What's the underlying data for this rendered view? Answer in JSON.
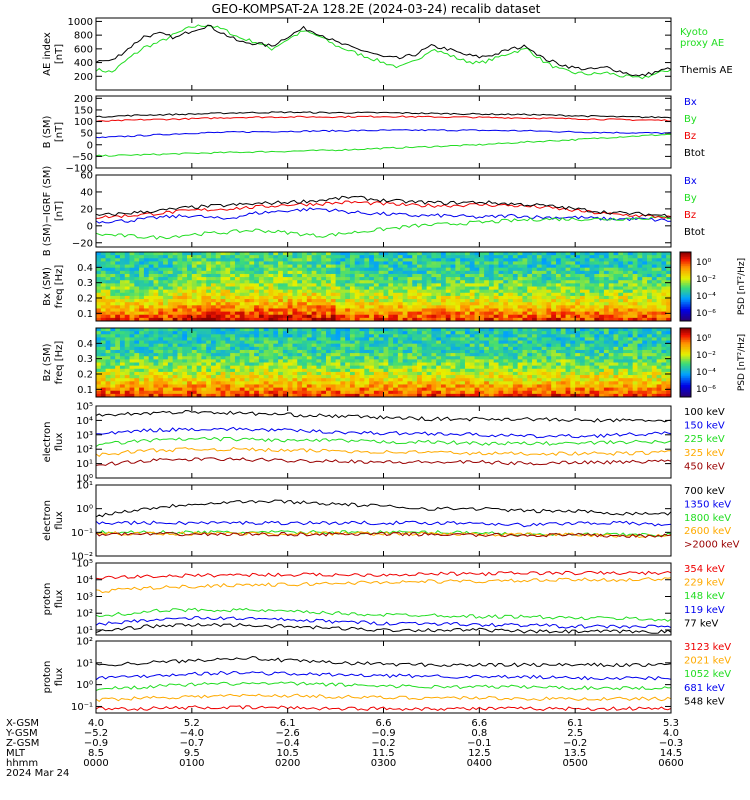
{
  "title": "GEO-KOMPSAT-2A 128.2E (2024-03-24) recalib dataset",
  "date_label": "2024 Mar 24",
  "colors": {
    "black": "#000000",
    "blue": "#0000ee",
    "green": "#22dd22",
    "red": "#ee0000",
    "orange": "#ffaa00",
    "darkred": "#990000"
  },
  "chart_data": [
    {
      "id": "ae",
      "type": "line",
      "ylabel": "AE index",
      "units": "[nT]",
      "ylim": [
        0,
        1050
      ],
      "ticks": [
        "1000",
        "800",
        "600",
        "400",
        "200"
      ],
      "tick_values": [
        1000,
        800,
        600,
        400,
        200
      ],
      "x": [
        0,
        10,
        20,
        30,
        40,
        50,
        60,
        70,
        80,
        90,
        100,
        110,
        120,
        130,
        140,
        150,
        160,
        170,
        180,
        190,
        200,
        210,
        220,
        230,
        240,
        250,
        260,
        270,
        280,
        290,
        300,
        310,
        320,
        330,
        340,
        350,
        360
      ],
      "series": [
        {
          "name": "Kyoto\nproxy AE",
          "color": "#22dd22",
          "values": [
            300,
            260,
            450,
            620,
            700,
            820,
            920,
            950,
            880,
            760,
            700,
            600,
            740,
            860,
            780,
            650,
            560,
            480,
            400,
            330,
            420,
            600,
            520,
            430,
            390,
            460,
            550,
            600,
            420,
            300,
            250,
            230,
            250,
            200,
            170,
            230,
            300
          ]
        },
        {
          "name": "Themis AE",
          "color": "#000000",
          "values": [
            420,
            430,
            600,
            780,
            820,
            760,
            870,
            940,
            820,
            700,
            680,
            640,
            780,
            900,
            820,
            700,
            620,
            560,
            480,
            460,
            520,
            640,
            600,
            520,
            480,
            520,
            600,
            640,
            460,
            380,
            320,
            300,
            330,
            260,
            200,
            260,
            320
          ]
        }
      ]
    },
    {
      "id": "bsm",
      "type": "line",
      "ylabel": "B (SM)",
      "units": "[nT]",
      "ylim": [
        -100,
        210
      ],
      "ticks": [
        "200",
        "150",
        "100",
        "50",
        "0",
        "−50",
        "−100"
      ],
      "tick_values": [
        200,
        150,
        100,
        50,
        0,
        -50,
        -100
      ],
      "x": [
        0,
        30,
        60,
        90,
        120,
        150,
        180,
        210,
        240,
        270,
        300,
        330,
        360
      ],
      "series": [
        {
          "name": "Bx",
          "color": "#0000ee",
          "values": [
            30,
            40,
            50,
            55,
            58,
            60,
            62,
            63,
            62,
            60,
            55,
            52,
            50
          ]
        },
        {
          "name": "By",
          "color": "#22dd22",
          "values": [
            -48,
            -43,
            -37,
            -32,
            -28,
            -23,
            -15,
            -8,
            0,
            12,
            22,
            35,
            45
          ]
        },
        {
          "name": "Bz",
          "color": "#ee0000",
          "values": [
            100,
            108,
            112,
            118,
            120,
            120,
            122,
            120,
            118,
            115,
            112,
            108,
            105
          ]
        },
        {
          "name": "Btot",
          "color": "#000000",
          "values": [
            120,
            128,
            132,
            138,
            140,
            138,
            138,
            135,
            132,
            130,
            125,
            120,
            118
          ]
        }
      ]
    },
    {
      "id": "bsmigrf",
      "type": "line",
      "ylabel": "B (SM)−IGRF (SM)",
      "units": "[nT]",
      "ylim": [
        -25,
        60
      ],
      "ticks": [
        "60",
        "40",
        "20",
        "0",
        "−20"
      ],
      "tick_values": [
        60,
        40,
        20,
        0,
        -20
      ],
      "x": [
        0,
        20,
        40,
        60,
        80,
        100,
        120,
        140,
        160,
        180,
        200,
        220,
        240,
        260,
        280,
        300,
        320,
        340,
        360
      ],
      "series": [
        {
          "name": "Bx",
          "color": "#0000ee",
          "values": [
            5,
            6,
            10,
            12,
            8,
            15,
            18,
            20,
            16,
            14,
            12,
            12,
            10,
            12,
            10,
            10,
            8,
            8,
            6
          ]
        },
        {
          "name": "By",
          "color": "#22dd22",
          "values": [
            -10,
            -12,
            -14,
            -10,
            -8,
            -5,
            -8,
            -12,
            -8,
            -4,
            0,
            2,
            4,
            6,
            8,
            8,
            8,
            9,
            10
          ]
        },
        {
          "name": "Bz",
          "color": "#ee0000",
          "values": [
            10,
            12,
            15,
            18,
            20,
            22,
            25,
            26,
            28,
            26,
            24,
            24,
            25,
            24,
            22,
            18,
            14,
            12,
            10
          ]
        },
        {
          "name": "Btot",
          "color": "#000000",
          "values": [
            12,
            15,
            18,
            22,
            24,
            26,
            28,
            30,
            34,
            30,
            28,
            27,
            28,
            26,
            24,
            20,
            16,
            14,
            12
          ]
        }
      ]
    },
    {
      "id": "bxspec",
      "type": "heatmap",
      "ylabel": "Bx (SM)",
      "units": "freq [Hz]",
      "ylim": [
        0.05,
        0.5
      ],
      "ticks": [
        "0.4",
        "0.3",
        "0.2",
        "0.1"
      ],
      "tick_values": [
        0.4,
        0.3,
        0.2,
        0.1
      ],
      "colorbar": {
        "label": "PSD [nT²/Hz]",
        "ticks": [
          "10⁰",
          "10⁻²",
          "10⁻⁴",
          "10⁻⁶"
        ]
      }
    },
    {
      "id": "bzspec",
      "type": "heatmap",
      "ylabel": "Bz (SM)",
      "units": "freq [Hz]",
      "ylim": [
        0.05,
        0.5
      ],
      "ticks": [
        "0.4",
        "0.3",
        "0.2",
        "0.1"
      ],
      "tick_values": [
        0.4,
        0.3,
        0.2,
        0.1
      ],
      "colorbar": {
        "label": "PSD [nT²/Hz]",
        "ticks": [
          "10⁰",
          "10⁻²",
          "10⁻⁴",
          "10⁻⁶"
        ]
      }
    },
    {
      "id": "eflux1",
      "type": "line",
      "ylabel": "electron",
      "units": "flux",
      "log": true,
      "ylim": [
        0,
        5
      ],
      "ticks": [
        "10⁵",
        "10⁴",
        "10³",
        "10²",
        "10¹",
        "10⁰"
      ],
      "tick_values": [
        5,
        4,
        3,
        2,
        1,
        0
      ],
      "x": [
        0,
        30,
        60,
        90,
        120,
        150,
        180,
        210,
        240,
        270,
        300,
        330,
        360
      ],
      "series": [
        {
          "name": "100 keV",
          "color": "#000000",
          "values": [
            4.4,
            4.5,
            4.6,
            4.5,
            4.4,
            4.3,
            4.2,
            4.1,
            4.1,
            4.1,
            4.0,
            4.0,
            4.0
          ]
        },
        {
          "name": "150 keV",
          "color": "#0000ee",
          "values": [
            3.0,
            3.3,
            3.4,
            3.4,
            3.3,
            3.2,
            3.1,
            3.1,
            3.0,
            2.9,
            2.9,
            3.0,
            3.1
          ]
        },
        {
          "name": "225 keV",
          "color": "#22dd22",
          "values": [
            2.3,
            2.6,
            2.7,
            2.7,
            2.6,
            2.6,
            2.5,
            2.5,
            2.4,
            2.4,
            2.4,
            2.5,
            2.5
          ]
        },
        {
          "name": "325 keV",
          "color": "#ffaa00",
          "values": [
            1.6,
            1.9,
            2.0,
            2.0,
            1.9,
            1.9,
            1.8,
            1.8,
            1.7,
            1.7,
            1.7,
            1.7,
            1.8
          ]
        },
        {
          "name": "450 keV",
          "color": "#990000",
          "values": [
            0.9,
            1.2,
            1.3,
            1.3,
            1.2,
            1.2,
            1.1,
            1.1,
            1.1,
            1.0,
            1.1,
            1.1,
            1.2
          ]
        }
      ]
    },
    {
      "id": "eflux2",
      "type": "line",
      "ylabel": "electron",
      "units": "flux",
      "log": true,
      "ylim": [
        -2,
        1
      ],
      "ticks": [
        "10¹",
        "10⁰",
        "10⁻¹",
        "10⁻²"
      ],
      "tick_values": [
        1,
        0,
        -1,
        -2
      ],
      "x": [
        0,
        30,
        60,
        90,
        120,
        150,
        180,
        210,
        240,
        270,
        300,
        330,
        360
      ],
      "series": [
        {
          "name": "700 keV",
          "color": "#000000",
          "values": [
            -0.3,
            0.0,
            0.2,
            0.3,
            0.3,
            0.2,
            0.1,
            0.0,
            0.0,
            -0.1,
            -0.1,
            -0.2,
            -0.2
          ]
        },
        {
          "name": "1350 keV",
          "color": "#0000ee",
          "values": [
            -0.6,
            -0.6,
            -0.6,
            -0.6,
            -0.6,
            -0.6,
            -0.6,
            -0.6,
            -0.6,
            -0.7,
            -0.6,
            -0.6,
            -0.7
          ]
        },
        {
          "name": "1800 keV",
          "color": "#22dd22",
          "values": [
            -1.0,
            -1.0,
            -1.0,
            -1.0,
            -1.0,
            -1.0,
            -1.0,
            -1.0,
            -1.0,
            -1.1,
            -1.1,
            -1.1,
            -1.1
          ]
        },
        {
          "name": "2600 keV",
          "color": "#ffaa00",
          "values": [
            -1.05,
            -1.05,
            -1.05,
            -1.05,
            -1.05,
            -1.05,
            -1.05,
            -1.05,
            -1.1,
            -1.1,
            -1.1,
            -1.15,
            -1.15
          ]
        },
        {
          "name": ">2000 keV",
          "color": "#990000",
          "values": [
            -1.08,
            -1.08,
            -1.08,
            -1.08,
            -1.08,
            -1.08,
            -1.08,
            -1.08,
            -1.12,
            -1.12,
            -1.12,
            -1.15,
            -1.15
          ]
        }
      ]
    },
    {
      "id": "pflux1",
      "type": "line",
      "ylabel": "proton",
      "units": "flux",
      "log": true,
      "ylim": [
        0.7,
        5
      ],
      "ticks": [
        "10⁵",
        "10⁴",
        "10³",
        "10²",
        "10¹"
      ],
      "tick_values": [
        5,
        4,
        3,
        2,
        1
      ],
      "x": [
        0,
        30,
        60,
        90,
        120,
        150,
        180,
        210,
        240,
        270,
        300,
        330,
        360
      ],
      "series": [
        {
          "name": "354 keV",
          "color": "#ee0000",
          "values": [
            4.1,
            4.2,
            4.25,
            4.3,
            4.3,
            4.3,
            4.3,
            4.35,
            4.35,
            4.4,
            4.4,
            4.4,
            4.4
          ]
        },
        {
          "name": "229 keV",
          "color": "#ffaa00",
          "values": [
            3.3,
            3.5,
            3.6,
            3.7,
            3.7,
            3.8,
            3.85,
            3.9,
            3.9,
            3.95,
            4.0,
            4.0,
            4.05
          ]
        },
        {
          "name": "148 keV",
          "color": "#22dd22",
          "values": [
            1.8,
            2.1,
            2.2,
            2.2,
            2.1,
            2.0,
            1.9,
            1.9,
            1.8,
            1.8,
            1.7,
            1.7,
            1.6
          ]
        },
        {
          "name": "119 keV",
          "color": "#0000ee",
          "values": [
            1.3,
            1.6,
            1.7,
            1.7,
            1.6,
            1.5,
            1.4,
            1.4,
            1.3,
            1.3,
            1.2,
            1.2,
            1.2
          ]
        },
        {
          "name": "77 keV",
          "color": "#000000",
          "values": [
            0.9,
            1.2,
            1.3,
            1.3,
            1.2,
            1.1,
            1.0,
            1.0,
            1.0,
            0.9,
            0.9,
            0.9,
            0.9
          ]
        }
      ]
    },
    {
      "id": "pflux2",
      "type": "line",
      "ylabel": "proton",
      "units": "flux",
      "log": true,
      "ylim": [
        -1.3,
        2
      ],
      "ticks": [
        "10²",
        "10¹",
        "10⁰",
        "10⁻¹"
      ],
      "tick_values": [
        2,
        1,
        0,
        -1
      ],
      "x": [
        0,
        30,
        60,
        90,
        120,
        150,
        180,
        210,
        240,
        270,
        300,
        330,
        360
      ],
      "series": [
        {
          "name": "3123 keV",
          "color": "#ee0000",
          "values": [
            -1.1,
            -1.1,
            -1.05,
            -1.05,
            -1.05,
            -1.1,
            -1.1,
            -1.1,
            -1.1,
            -1.1,
            -1.1,
            -1.1,
            -1.1
          ]
        },
        {
          "name": "2021 keV",
          "color": "#ffaa00",
          "values": [
            -0.7,
            -0.6,
            -0.55,
            -0.5,
            -0.5,
            -0.55,
            -0.6,
            -0.6,
            -0.6,
            -0.65,
            -0.65,
            -0.65,
            -0.65
          ]
        },
        {
          "name": "1052 keV",
          "color": "#22dd22",
          "values": [
            -0.2,
            -0.1,
            0.0,
            0.05,
            0.05,
            0.0,
            -0.05,
            -0.1,
            -0.1,
            -0.1,
            -0.15,
            -0.15,
            -0.15
          ]
        },
        {
          "name": "681 keV",
          "color": "#0000ee",
          "values": [
            0.3,
            0.4,
            0.5,
            0.55,
            0.5,
            0.45,
            0.4,
            0.4,
            0.35,
            0.35,
            0.3,
            0.3,
            0.3
          ]
        },
        {
          "name": "548 keV",
          "color": "#000000",
          "values": [
            0.9,
            1.0,
            1.1,
            1.25,
            1.1,
            1.0,
            0.95,
            0.9,
            0.9,
            0.9,
            0.9,
            0.9,
            0.9
          ]
        }
      ]
    }
  ],
  "x_axis": {
    "rows": [
      {
        "label": "X-GSM",
        "values": [
          "4.0",
          "5.2",
          "6.1",
          "6.6",
          "6.6",
          "6.1",
          "5.3"
        ]
      },
      {
        "label": "Y-GSM",
        "values": [
          "−5.2",
          "−4.0",
          "−2.6",
          "−0.9",
          "0.8",
          "2.5",
          "4.0"
        ]
      },
      {
        "label": "Z-GSM",
        "values": [
          "−0.9",
          "−0.7",
          "−0.4",
          "−0.2",
          "−0.1",
          "−0.2",
          "−0.3"
        ]
      },
      {
        "label": "MLT",
        "values": [
          "8.5",
          "9.5",
          "10.5",
          "11.5",
          "12.5",
          "13.5",
          "14.5"
        ]
      },
      {
        "label": "hhmm",
        "values": [
          "0000",
          "0100",
          "0200",
          "0300",
          "0400",
          "0500",
          "0600"
        ]
      }
    ]
  }
}
